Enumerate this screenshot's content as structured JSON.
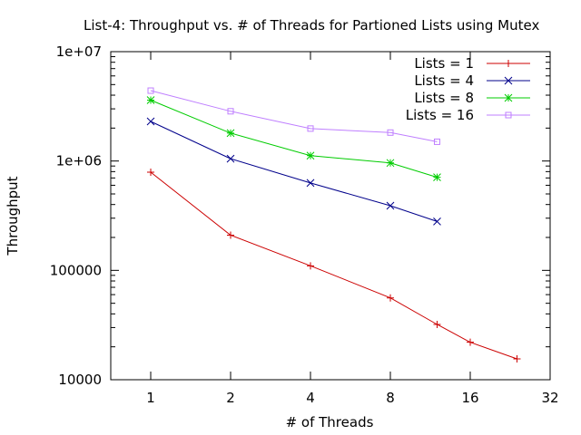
{
  "chart_data": {
    "type": "line",
    "title": "List-4: Throughput vs. # of Threads for Partioned Lists using Mutex",
    "xlabel": "# of Threads",
    "ylabel": "Throughput",
    "x_scale": "log2",
    "y_scale": "log10",
    "xlim": [
      0.707,
      32
    ],
    "ylim": [
      10000,
      10000000
    ],
    "x_ticks": [
      1,
      2,
      4,
      8,
      16,
      32
    ],
    "x_tick_labels": [
      "1",
      "2",
      "4",
      "8",
      "16",
      "32"
    ],
    "y_ticks": [
      10000,
      100000,
      1000000,
      10000000
    ],
    "y_tick_labels": [
      "10000",
      "100000",
      "1e+06",
      "1e+07"
    ],
    "grid": false,
    "legend_position": "top-right",
    "series": [
      {
        "name": "Lists = 1",
        "color": "#cc0000",
        "marker": "plus",
        "x": [
          1,
          2,
          4,
          8,
          12,
          16,
          24
        ],
        "y": [
          790000,
          210000,
          110000,
          56000,
          32000,
          22000,
          15500
        ]
      },
      {
        "name": "Lists = 4",
        "color": "#00008b",
        "marker": "cross",
        "x": [
          1,
          2,
          4,
          8,
          12
        ],
        "y": [
          2300000,
          1050000,
          630000,
          390000,
          280000
        ]
      },
      {
        "name": "Lists = 8",
        "color": "#00cc00",
        "marker": "star",
        "x": [
          1,
          2,
          4,
          8,
          12
        ],
        "y": [
          3600000,
          1800000,
          1120000,
          960000,
          710000
        ]
      },
      {
        "name": "Lists = 16",
        "color": "#bf7fff",
        "marker": "square",
        "x": [
          1,
          2,
          4,
          8,
          12
        ],
        "y": [
          4400000,
          2850000,
          1980000,
          1820000,
          1500000
        ]
      }
    ]
  }
}
